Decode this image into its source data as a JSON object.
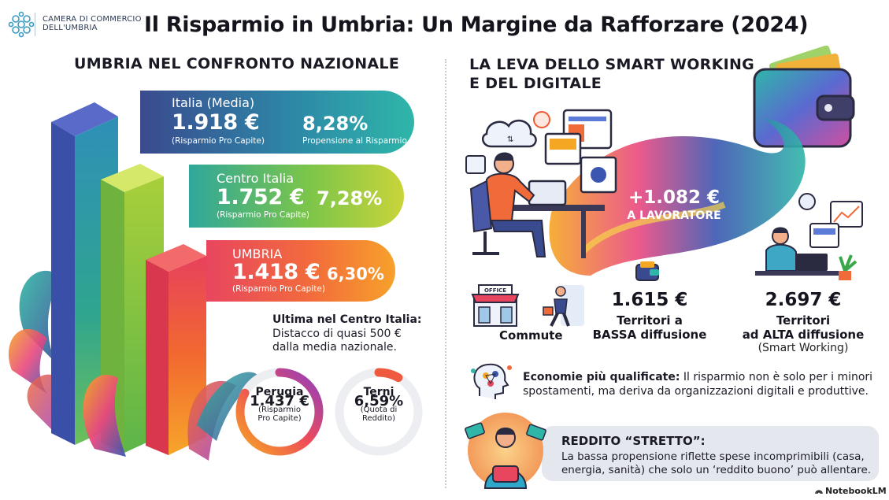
{
  "header": {
    "logo_line1": "CAMERA DI COMMERCIO",
    "logo_line2": "DELL'UMBRIA",
    "title": "Il Risparmio in Umbria: Un Margine da Rafforzare (2024)"
  },
  "left": {
    "section_title": "UMBRIA NEL CONFRONTO NAZIONALE",
    "italia": {
      "label": "Italia (Media)",
      "value": "1.918 €",
      "value_sub": "(Risparmio Pro Capite)",
      "pct": "8,28%",
      "pct_sub": "Propensione al Risparmio"
    },
    "centro": {
      "label": "Centro Italia",
      "value": "1.752 €",
      "value_sub": "(Risparmio Pro Capite)",
      "pct": "7,28%"
    },
    "umbria": {
      "label": "UMBRIA",
      "value": "1.418 €",
      "value_sub": "(Risparmio Pro Capite)",
      "pct": "6,30%"
    },
    "note": {
      "bold": "Ultima nel Centro Italia:",
      "line1": "Distacco di quasi 500 €",
      "line2": "dalla media nazionale."
    },
    "perugia": {
      "name": "Perugia",
      "value": "1.437 €",
      "sub1": "(Risparmio",
      "sub2": "Pro Capite)"
    },
    "terni": {
      "name": "Terni",
      "value": "6,59%",
      "sub1": "(Quota di",
      "sub2": "Reddito)"
    }
  },
  "right": {
    "section_title_line1": "LA LEVA DELLO SMART WORKING",
    "section_title_line2": "E DEL DIGITALE",
    "center_value": "+1.082 €",
    "center_sub": "A LAVORATORE",
    "office_sign": "OFFICE",
    "commute_label": "Commute",
    "low": {
      "value": "1.615 €",
      "label1": "Territori a",
      "label2": "BASSA diffusione"
    },
    "high": {
      "value": "2.697 €",
      "label1": "Territori",
      "label2": "ad ALTA diffusione",
      "label3": "(Smart Working)"
    },
    "econ_bold": "Economie più qualificate:",
    "econ_rest": " Il risparmio non è solo per i minori",
    "econ_line2": "spostamenti, ma deriva da organizzazioni digitali e produttive.",
    "reddito_title": "REDDITO “STRETTO”:",
    "reddito_text": "La bassa propensione riflette spese incomprimibili (casa, energia, sanità) che solo un ‘reddito buono’ può allentare."
  },
  "footer": {
    "brand": "NotebookLM"
  },
  "colors": {
    "italia_start": "#3a4a8e",
    "italia_end": "#2fb6a9",
    "centro_start": "#2fa79a",
    "centro_end": "#c9d43a",
    "umbria_start": "#e8465f",
    "umbria_end": "#f7a12a"
  }
}
